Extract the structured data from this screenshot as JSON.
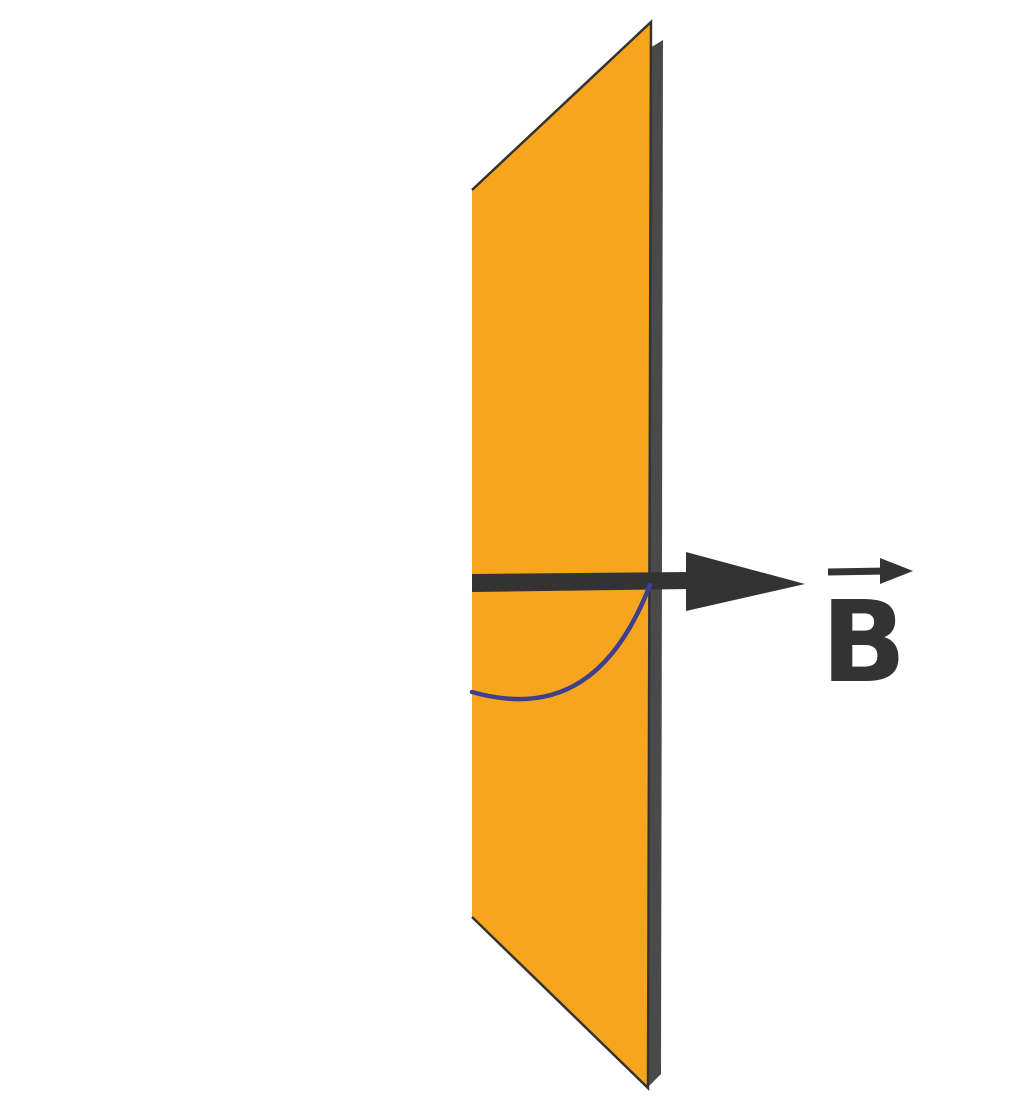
{
  "colors": {
    "plate_face": "#F7A51C",
    "plate_edge": "#4A4A4A",
    "outline": "#333333",
    "arrow": "#333333",
    "angle_arc": "#3F3F8F",
    "label": "#333333"
  },
  "icons": {
    "vector_arrow": "arrow-right-icon",
    "vector_accent": "vector-over-arrow-icon"
  },
  "labels": {
    "field_vector": "B"
  }
}
